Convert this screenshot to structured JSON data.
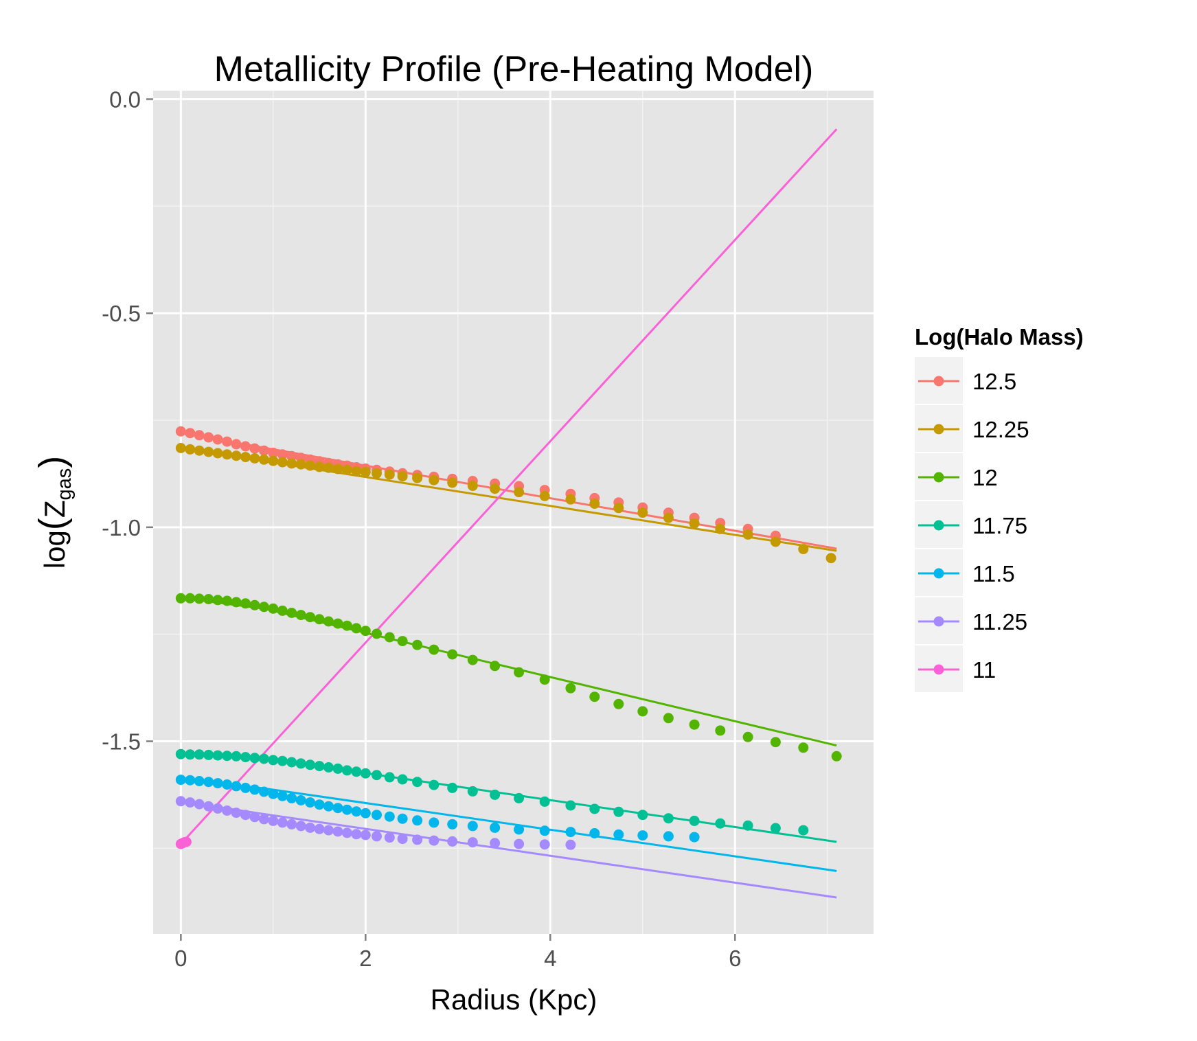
{
  "chart_data": {
    "type": "line",
    "title": "Metallicity Profile (Pre-Heating Model)",
    "xlabel": "Radius (Kpc)",
    "ylabel_main": "log",
    "ylabel_symbol": "Z",
    "ylabel_subscript": "gas",
    "xlim": [
      -0.3,
      7.5
    ],
    "ylim": [
      -1.95,
      0.02
    ],
    "x_ticks": [
      0,
      2,
      4,
      6
    ],
    "x_tick_labels": [
      "0",
      "2",
      "4",
      "6"
    ],
    "y_ticks": [
      0.0,
      -0.5,
      -1.0,
      -1.5
    ],
    "y_tick_labels": [
      "0.0",
      "-0.5",
      "-1.0",
      "-1.5"
    ],
    "grid": true,
    "legend_title": "Log(Halo Mass)",
    "legend_position": "right",
    "series": [
      {
        "name": "12.5",
        "color": "#F8766D",
        "line": [
          [
            0.0,
            -0.78
          ],
          [
            7.1,
            -1.05
          ]
        ],
        "points": [
          [
            0.0,
            -0.776
          ],
          [
            0.1,
            -0.78
          ],
          [
            0.2,
            -0.785
          ],
          [
            0.3,
            -0.79
          ],
          [
            0.4,
            -0.795
          ],
          [
            0.5,
            -0.8
          ],
          [
            0.6,
            -0.806
          ],
          [
            0.7,
            -0.811
          ],
          [
            0.8,
            -0.816
          ],
          [
            0.9,
            -0.821
          ],
          [
            1.0,
            -0.826
          ],
          [
            1.1,
            -0.83
          ],
          [
            1.2,
            -0.834
          ],
          [
            1.3,
            -0.838
          ],
          [
            1.4,
            -0.842
          ],
          [
            1.5,
            -0.846
          ],
          [
            1.6,
            -0.85
          ],
          [
            1.7,
            -0.853
          ],
          [
            1.8,
            -0.856
          ],
          [
            1.9,
            -0.86
          ],
          [
            2.0,
            -0.863
          ],
          [
            2.12,
            -0.866
          ],
          [
            2.26,
            -0.87
          ],
          [
            2.4,
            -0.874
          ],
          [
            2.56,
            -0.878
          ],
          [
            2.74,
            -0.882
          ],
          [
            2.94,
            -0.887
          ],
          [
            3.16,
            -0.892
          ],
          [
            3.4,
            -0.898
          ],
          [
            3.66,
            -0.904
          ],
          [
            3.94,
            -0.913
          ],
          [
            4.22,
            -0.922
          ],
          [
            4.48,
            -0.932
          ],
          [
            4.74,
            -0.942
          ],
          [
            5.0,
            -0.954
          ],
          [
            5.28,
            -0.966
          ],
          [
            5.56,
            -0.978
          ],
          [
            5.84,
            -0.99
          ],
          [
            6.14,
            -1.004
          ],
          [
            6.44,
            -1.02
          ]
        ]
      },
      {
        "name": "12.25",
        "color": "#C49A00",
        "line": [
          [
            0.0,
            -0.815
          ],
          [
            7.1,
            -1.055
          ]
        ],
        "points": [
          [
            0.0,
            -0.815
          ],
          [
            0.1,
            -0.818
          ],
          [
            0.2,
            -0.821
          ],
          [
            0.3,
            -0.824
          ],
          [
            0.4,
            -0.827
          ],
          [
            0.5,
            -0.83
          ],
          [
            0.6,
            -0.833
          ],
          [
            0.7,
            -0.836
          ],
          [
            0.8,
            -0.839
          ],
          [
            0.9,
            -0.842
          ],
          [
            1.0,
            -0.845
          ],
          [
            1.1,
            -0.848
          ],
          [
            1.2,
            -0.851
          ],
          [
            1.3,
            -0.853
          ],
          [
            1.4,
            -0.856
          ],
          [
            1.5,
            -0.859
          ],
          [
            1.6,
            -0.861
          ],
          [
            1.7,
            -0.864
          ],
          [
            1.8,
            -0.866
          ],
          [
            1.9,
            -0.869
          ],
          [
            2.0,
            -0.871
          ],
          [
            2.12,
            -0.874
          ],
          [
            2.26,
            -0.877
          ],
          [
            2.4,
            -0.881
          ],
          [
            2.56,
            -0.885
          ],
          [
            2.74,
            -0.89
          ],
          [
            2.94,
            -0.896
          ],
          [
            3.16,
            -0.903
          ],
          [
            3.4,
            -0.91
          ],
          [
            3.66,
            -0.918
          ],
          [
            3.94,
            -0.927
          ],
          [
            4.22,
            -0.935
          ],
          [
            4.48,
            -0.945
          ],
          [
            4.74,
            -0.955
          ],
          [
            5.0,
            -0.966
          ],
          [
            5.28,
            -0.978
          ],
          [
            5.56,
            -0.991
          ],
          [
            5.84,
            -1.004
          ],
          [
            6.14,
            -1.017
          ],
          [
            6.44,
            -1.034
          ],
          [
            6.74,
            -1.051
          ],
          [
            7.04,
            -1.072
          ]
        ]
      },
      {
        "name": "12",
        "color": "#53B400",
        "line": [
          [
            0.0,
            -1.165
          ],
          [
            0.9,
            -1.19
          ],
          [
            7.1,
            -1.51
          ]
        ],
        "points": [
          [
            0.0,
            -1.166
          ],
          [
            0.1,
            -1.166
          ],
          [
            0.2,
            -1.167
          ],
          [
            0.3,
            -1.168
          ],
          [
            0.4,
            -1.17
          ],
          [
            0.5,
            -1.172
          ],
          [
            0.6,
            -1.175
          ],
          [
            0.7,
            -1.178
          ],
          [
            0.8,
            -1.182
          ],
          [
            0.9,
            -1.186
          ],
          [
            1.0,
            -1.19
          ],
          [
            1.1,
            -1.195
          ],
          [
            1.2,
            -1.2
          ],
          [
            1.3,
            -1.205
          ],
          [
            1.4,
            -1.21
          ],
          [
            1.5,
            -1.215
          ],
          [
            1.6,
            -1.22
          ],
          [
            1.7,
            -1.225
          ],
          [
            1.8,
            -1.23
          ],
          [
            1.9,
            -1.236
          ],
          [
            2.0,
            -1.242
          ],
          [
            2.12,
            -1.249
          ],
          [
            2.26,
            -1.257
          ],
          [
            2.4,
            -1.266
          ],
          [
            2.56,
            -1.275
          ],
          [
            2.74,
            -1.286
          ],
          [
            2.94,
            -1.297
          ],
          [
            3.16,
            -1.31
          ],
          [
            3.4,
            -1.324
          ],
          [
            3.66,
            -1.339
          ],
          [
            3.94,
            -1.356
          ],
          [
            4.22,
            -1.376
          ],
          [
            4.48,
            -1.396
          ],
          [
            4.74,
            -1.413
          ],
          [
            5.0,
            -1.43
          ],
          [
            5.28,
            -1.446
          ],
          [
            5.56,
            -1.461
          ],
          [
            5.84,
            -1.475
          ],
          [
            6.14,
            -1.49
          ],
          [
            6.44,
            -1.502
          ],
          [
            6.74,
            -1.515
          ],
          [
            7.1,
            -1.535
          ]
        ]
      },
      {
        "name": "11.75",
        "color": "#00C094",
        "line": [
          [
            0.0,
            -1.53
          ],
          [
            0.9,
            -1.54
          ],
          [
            7.1,
            -1.735
          ]
        ],
        "points": [
          [
            0.0,
            -1.53
          ],
          [
            0.1,
            -1.531
          ],
          [
            0.2,
            -1.531
          ],
          [
            0.3,
            -1.532
          ],
          [
            0.4,
            -1.533
          ],
          [
            0.5,
            -1.534
          ],
          [
            0.6,
            -1.535
          ],
          [
            0.7,
            -1.537
          ],
          [
            0.8,
            -1.539
          ],
          [
            0.9,
            -1.541
          ],
          [
            1.0,
            -1.544
          ],
          [
            1.1,
            -1.546
          ],
          [
            1.2,
            -1.549
          ],
          [
            1.3,
            -1.552
          ],
          [
            1.4,
            -1.555
          ],
          [
            1.5,
            -1.558
          ],
          [
            1.6,
            -1.561
          ],
          [
            1.7,
            -1.564
          ],
          [
            1.8,
            -1.568
          ],
          [
            1.9,
            -1.571
          ],
          [
            2.0,
            -1.575
          ],
          [
            2.12,
            -1.579
          ],
          [
            2.26,
            -1.584
          ],
          [
            2.4,
            -1.589
          ],
          [
            2.56,
            -1.595
          ],
          [
            2.74,
            -1.602
          ],
          [
            2.94,
            -1.609
          ],
          [
            3.16,
            -1.617
          ],
          [
            3.4,
            -1.625
          ],
          [
            3.66,
            -1.633
          ],
          [
            3.94,
            -1.641
          ],
          [
            4.22,
            -1.65
          ],
          [
            4.48,
            -1.658
          ],
          [
            4.74,
            -1.665
          ],
          [
            5.0,
            -1.672
          ],
          [
            5.28,
            -1.68
          ],
          [
            5.56,
            -1.686
          ],
          [
            5.84,
            -1.692
          ],
          [
            6.14,
            -1.697
          ],
          [
            6.44,
            -1.703
          ],
          [
            6.74,
            -1.708
          ]
        ]
      },
      {
        "name": "11.5",
        "color": "#00B6EB",
        "line": [
          [
            0.0,
            -1.59
          ],
          [
            0.9,
            -1.61
          ],
          [
            7.1,
            -1.803
          ]
        ],
        "points": [
          [
            0.0,
            -1.59
          ],
          [
            0.1,
            -1.591
          ],
          [
            0.2,
            -1.593
          ],
          [
            0.3,
            -1.595
          ],
          [
            0.4,
            -1.598
          ],
          [
            0.5,
            -1.601
          ],
          [
            0.6,
            -1.605
          ],
          [
            0.7,
            -1.609
          ],
          [
            0.8,
            -1.613
          ],
          [
            0.9,
            -1.618
          ],
          [
            1.0,
            -1.623
          ],
          [
            1.1,
            -1.628
          ],
          [
            1.2,
            -1.633
          ],
          [
            1.3,
            -1.638
          ],
          [
            1.4,
            -1.643
          ],
          [
            1.5,
            -1.648
          ],
          [
            1.6,
            -1.652
          ],
          [
            1.7,
            -1.656
          ],
          [
            1.8,
            -1.66
          ],
          [
            1.9,
            -1.664
          ],
          [
            2.0,
            -1.668
          ],
          [
            2.12,
            -1.672
          ],
          [
            2.26,
            -1.676
          ],
          [
            2.4,
            -1.681
          ],
          [
            2.56,
            -1.685
          ],
          [
            2.74,
            -1.69
          ],
          [
            2.94,
            -1.694
          ],
          [
            3.16,
            -1.698
          ],
          [
            3.4,
            -1.702
          ],
          [
            3.66,
            -1.706
          ],
          [
            3.94,
            -1.709
          ],
          [
            4.22,
            -1.712
          ],
          [
            4.48,
            -1.715
          ],
          [
            4.74,
            -1.718
          ],
          [
            5.0,
            -1.72
          ],
          [
            5.28,
            -1.722
          ],
          [
            5.56,
            -1.724
          ]
        ]
      },
      {
        "name": "11.25",
        "color": "#A58AFF",
        "line": [
          [
            0.0,
            -1.64
          ],
          [
            0.9,
            -1.67
          ],
          [
            7.1,
            -1.865
          ]
        ],
        "points": [
          [
            0.0,
            -1.64
          ],
          [
            0.1,
            -1.643
          ],
          [
            0.2,
            -1.647
          ],
          [
            0.3,
            -1.652
          ],
          [
            0.4,
            -1.657
          ],
          [
            0.5,
            -1.662
          ],
          [
            0.6,
            -1.667
          ],
          [
            0.7,
            -1.672
          ],
          [
            0.8,
            -1.677
          ],
          [
            0.9,
            -1.682
          ],
          [
            1.0,
            -1.686
          ],
          [
            1.1,
            -1.69
          ],
          [
            1.2,
            -1.694
          ],
          [
            1.3,
            -1.698
          ],
          [
            1.4,
            -1.702
          ],
          [
            1.5,
            -1.705
          ],
          [
            1.6,
            -1.708
          ],
          [
            1.7,
            -1.711
          ],
          [
            1.8,
            -1.714
          ],
          [
            1.9,
            -1.717
          ],
          [
            2.0,
            -1.719
          ],
          [
            2.12,
            -1.722
          ],
          [
            2.26,
            -1.725
          ],
          [
            2.4,
            -1.728
          ],
          [
            2.56,
            -1.73
          ],
          [
            2.74,
            -1.732
          ],
          [
            2.94,
            -1.734
          ],
          [
            3.16,
            -1.736
          ],
          [
            3.4,
            -1.738
          ],
          [
            3.66,
            -1.74
          ],
          [
            3.94,
            -1.741
          ],
          [
            4.22,
            -1.742
          ]
        ]
      },
      {
        "name": "11",
        "color": "#FB61D7",
        "line": [
          [
            0.0,
            -1.74
          ],
          [
            7.1,
            -0.07
          ]
        ],
        "points": [
          [
            0.0,
            -1.74
          ],
          [
            0.02,
            -1.738
          ],
          [
            0.04,
            -1.736
          ],
          [
            0.06,
            -1.735
          ]
        ]
      }
    ]
  }
}
